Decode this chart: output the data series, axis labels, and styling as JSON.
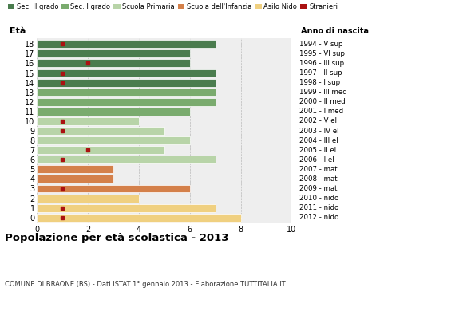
{
  "ages": [
    18,
    17,
    16,
    15,
    14,
    13,
    12,
    11,
    10,
    9,
    8,
    7,
    6,
    5,
    4,
    3,
    2,
    1,
    0
  ],
  "right_labels": [
    "1994 - V sup",
    "1995 - VI sup",
    "1996 - III sup",
    "1997 - II sup",
    "1998 - I sup",
    "1999 - III med",
    "2000 - II med",
    "2001 - I med",
    "2002 - V el",
    "2003 - IV el",
    "2004 - III el",
    "2005 - II el",
    "2006 - I el",
    "2007 - mat",
    "2008 - mat",
    "2009 - mat",
    "2010 - nido",
    "2011 - nido",
    "2012 - nido"
  ],
  "bar_values": [
    7,
    6,
    6,
    7,
    7,
    7,
    7,
    6,
    4,
    5,
    6,
    5,
    7,
    3,
    3,
    6,
    4,
    7,
    8
  ],
  "bar_colors": [
    "#4a7c4e",
    "#4a7c4e",
    "#4a7c4e",
    "#4a7c4e",
    "#4a7c4e",
    "#7aab6e",
    "#7aab6e",
    "#7aab6e",
    "#b8d4a8",
    "#b8d4a8",
    "#b8d4a8",
    "#b8d4a8",
    "#b8d4a8",
    "#d4804a",
    "#d4804a",
    "#d4804a",
    "#f0d080",
    "#f0d080",
    "#f0d080"
  ],
  "stranieri_x": [
    1,
    0,
    2,
    1,
    1,
    0,
    0,
    0,
    1,
    1,
    0,
    2,
    1,
    0,
    0,
    1,
    0,
    1,
    1
  ],
  "stranieri_color": "#aa1111",
  "legend_labels": [
    "Sec. II grado",
    "Sec. I grado",
    "Scuola Primaria",
    "Scuola dell'Infanzia",
    "Asilo Nido",
    "Stranieri"
  ],
  "legend_colors": [
    "#4a7c4e",
    "#7aab6e",
    "#b8d4a8",
    "#d4804a",
    "#f0d080",
    "#aa1111"
  ],
  "title": "Popolazione per età scolastica - 2013",
  "subtitle": "COMUNE DI BRAONE (BS) - Dati ISTAT 1° gennaio 2013 - Elaborazione TUTTITALIA.IT",
  "ylabel": "Età",
  "right_header": "Anno di nascita",
  "xlim": [
    0,
    10
  ],
  "xticks": [
    0,
    2,
    4,
    6,
    8,
    10
  ],
  "background_color": "#ffffff",
  "plot_bg_color": "#eeeeee"
}
